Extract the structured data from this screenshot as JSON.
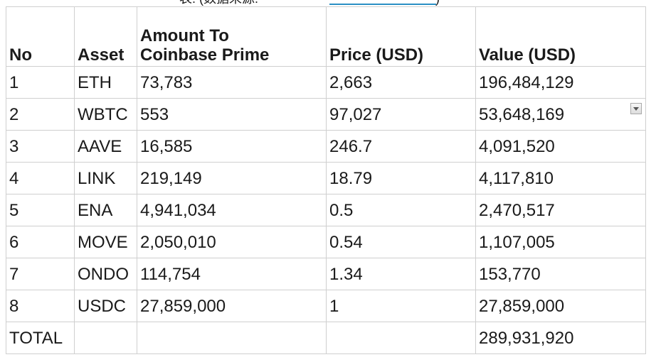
{
  "top_fragment": {
    "before": "表:  (数据来源:",
    "after": ")"
  },
  "table": {
    "headers": [
      "No",
      "Asset",
      "Amount To\nCoinbase Prime",
      "Price (USD)",
      "Value (USD)"
    ],
    "rows": [
      [
        "1",
        "ETH",
        "73,783",
        "2,663",
        "196,484,129"
      ],
      [
        "2",
        "WBTC",
        "553",
        "97,027",
        "53,648,169"
      ],
      [
        "3",
        "AAVE",
        "16,585",
        "246.7",
        "4,091,520"
      ],
      [
        "4",
        "LINK",
        "219,149",
        "18.79",
        "4,117,810"
      ],
      [
        "5",
        "ENA",
        "4,941,034",
        "0.5",
        "2,470,517"
      ],
      [
        "6",
        "MOVE",
        "2,050,010",
        "0.54",
        "1,107,005"
      ],
      [
        "7",
        "ONDO",
        "114,754",
        "1.34",
        "153,770"
      ],
      [
        "8",
        "USDC",
        "27,859,000",
        "1",
        "27,859,000"
      ]
    ],
    "total": [
      "TOTAL",
      "",
      "",
      "",
      "289,931,920"
    ]
  },
  "filter_dropdown": {
    "icon": "dropdown-arrow-icon"
  }
}
